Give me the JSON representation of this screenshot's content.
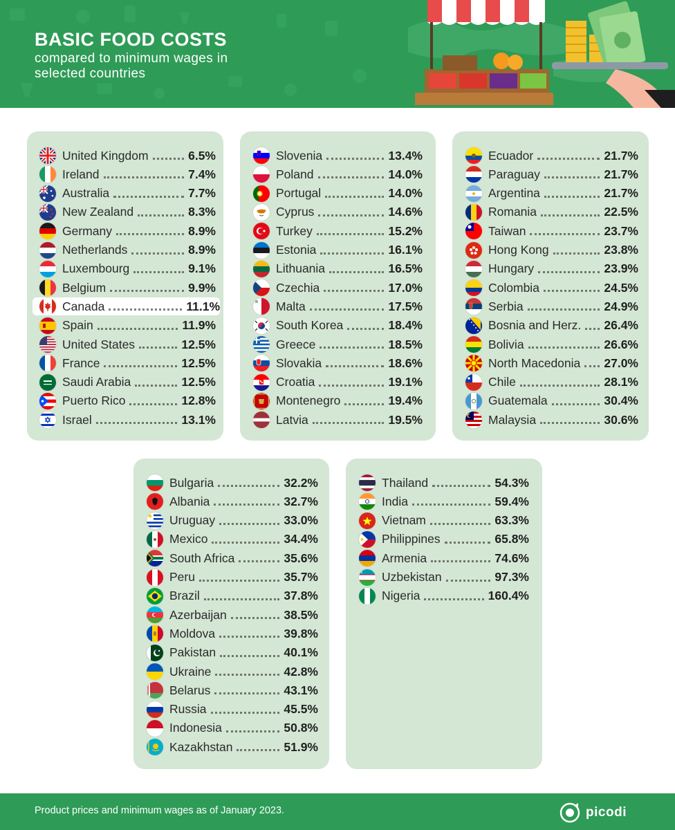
{
  "header": {
    "title": "BASIC FOOD COSTS",
    "subtitle": "compared to minimum wages in selected countries"
  },
  "footer": {
    "note": "Product prices and minimum wages as of January 2023.",
    "brand": "picodi"
  },
  "colors": {
    "header_green": "#2e9b57",
    "card_bg": "#d4e6d4",
    "highlight_row": "#ffffff"
  },
  "cards": [
    {
      "rows": [
        {
          "country": "United Kingdom",
          "value": "6.5%",
          "flag": "gb"
        },
        {
          "country": "Ireland",
          "value": "7.4%",
          "flag": "ie"
        },
        {
          "country": "Australia",
          "value": "7.7%",
          "flag": "au"
        },
        {
          "country": "New Zealand",
          "value": "8.3%",
          "flag": "nz"
        },
        {
          "country": "Germany",
          "value": "8.9%",
          "flag": "de"
        },
        {
          "country": "Netherlands",
          "value": "8.9%",
          "flag": "nl"
        },
        {
          "country": "Luxembourg",
          "value": "9.1%",
          "flag": "lu"
        },
        {
          "country": "Belgium",
          "value": "9.9%",
          "flag": "be"
        },
        {
          "country": "Canada",
          "value": "11.1%",
          "flag": "ca",
          "highlight": true
        },
        {
          "country": "Spain",
          "value": "11.9%",
          "flag": "es"
        },
        {
          "country": "United States",
          "value": "12.5%",
          "flag": "us"
        },
        {
          "country": "France",
          "value": "12.5%",
          "flag": "fr"
        },
        {
          "country": "Saudi Arabia",
          "value": "12.5%",
          "flag": "sa"
        },
        {
          "country": "Puerto Rico",
          "value": "12.8%",
          "flag": "pr"
        },
        {
          "country": "Israel",
          "value": "13.1%",
          "flag": "il"
        }
      ]
    },
    {
      "rows": [
        {
          "country": "Slovenia",
          "value": "13.4%",
          "flag": "si"
        },
        {
          "country": "Poland",
          "value": "14.0%",
          "flag": "pl"
        },
        {
          "country": "Portugal",
          "value": "14.0%",
          "flag": "pt"
        },
        {
          "country": "Cyprus",
          "value": "14.6%",
          "flag": "cy"
        },
        {
          "country": "Turkey",
          "value": "15.2%",
          "flag": "tr"
        },
        {
          "country": "Estonia",
          "value": "16.1%",
          "flag": "ee"
        },
        {
          "country": "Lithuania",
          "value": "16.5%",
          "flag": "lt"
        },
        {
          "country": "Czechia",
          "value": "17.0%",
          "flag": "cz"
        },
        {
          "country": "Malta",
          "value": "17.5%",
          "flag": "mt"
        },
        {
          "country": "South Korea",
          "value": "18.4%",
          "flag": "kr"
        },
        {
          "country": "Greece",
          "value": "18.5%",
          "flag": "gr"
        },
        {
          "country": "Slovakia",
          "value": "18.6%",
          "flag": "sk"
        },
        {
          "country": "Croatia",
          "value": "19.1%",
          "flag": "hr"
        },
        {
          "country": "Montenegro",
          "value": "19.4%",
          "flag": "me"
        },
        {
          "country": "Latvia",
          "value": "19.5%",
          "flag": "lv"
        }
      ]
    },
    {
      "rows": [
        {
          "country": "Ecuador",
          "value": "21.7%",
          "flag": "ec"
        },
        {
          "country": "Paraguay",
          "value": "21.7%",
          "flag": "py"
        },
        {
          "country": "Argentina",
          "value": "21.7%",
          "flag": "ar"
        },
        {
          "country": "Romania",
          "value": "22.5%",
          "flag": "ro"
        },
        {
          "country": "Taiwan",
          "value": "23.7%",
          "flag": "tw"
        },
        {
          "country": "Hong Kong",
          "value": "23.8%",
          "flag": "hk"
        },
        {
          "country": "Hungary",
          "value": "23.9%",
          "flag": "hu"
        },
        {
          "country": "Colombia",
          "value": "24.5%",
          "flag": "co"
        },
        {
          "country": "Serbia",
          "value": "24.9%",
          "flag": "rs"
        },
        {
          "country": "Bosnia and Herz.",
          "value": "26.4%",
          "flag": "ba"
        },
        {
          "country": "Bolivia",
          "value": "26.6%",
          "flag": "bo"
        },
        {
          "country": "North Macedonia",
          "value": "27.0%",
          "flag": "mk"
        },
        {
          "country": "Chile",
          "value": "28.1%",
          "flag": "cl"
        },
        {
          "country": "Guatemala",
          "value": "30.4%",
          "flag": "gt"
        },
        {
          "country": "Malaysia",
          "value": "30.6%",
          "flag": "my"
        }
      ]
    },
    {
      "rows": [
        {
          "country": "Bulgaria",
          "value": "32.2%",
          "flag": "bg"
        },
        {
          "country": "Albania",
          "value": "32.7%",
          "flag": "al"
        },
        {
          "country": "Uruguay",
          "value": "33.0%",
          "flag": "uy"
        },
        {
          "country": "Mexico",
          "value": "34.4%",
          "flag": "mx"
        },
        {
          "country": "South Africa",
          "value": "35.6%",
          "flag": "za"
        },
        {
          "country": "Peru",
          "value": "35.7%",
          "flag": "pe"
        },
        {
          "country": "Brazil",
          "value": "37.8%",
          "flag": "br"
        },
        {
          "country": "Azerbaijan",
          "value": "38.5%",
          "flag": "az"
        },
        {
          "country": "Moldova",
          "value": "39.8%",
          "flag": "md"
        },
        {
          "country": "Pakistan",
          "value": "40.1%",
          "flag": "pk"
        },
        {
          "country": "Ukraine",
          "value": "42.8%",
          "flag": "ua"
        },
        {
          "country": "Belarus",
          "value": "43.1%",
          "flag": "by"
        },
        {
          "country": "Russia",
          "value": "45.5%",
          "flag": "ru"
        },
        {
          "country": "Indonesia",
          "value": "50.8%",
          "flag": "id"
        },
        {
          "country": "Kazakhstan",
          "value": "51.9%",
          "flag": "kz"
        }
      ]
    },
    {
      "rows": [
        {
          "country": "Thailand",
          "value": "54.3%",
          "flag": "th"
        },
        {
          "country": "India",
          "value": "59.4%",
          "flag": "in"
        },
        {
          "country": "Vietnam",
          "value": "63.3%",
          "flag": "vn"
        },
        {
          "country": "Philippines",
          "value": "65.8%",
          "flag": "ph"
        },
        {
          "country": "Armenia",
          "value": "74.6%",
          "flag": "am"
        },
        {
          "country": "Uzbekistan",
          "value": "97.3%",
          "flag": "uz"
        },
        {
          "country": "Nigeria",
          "value": "160.4%",
          "flag": "ng"
        }
      ]
    }
  ]
}
